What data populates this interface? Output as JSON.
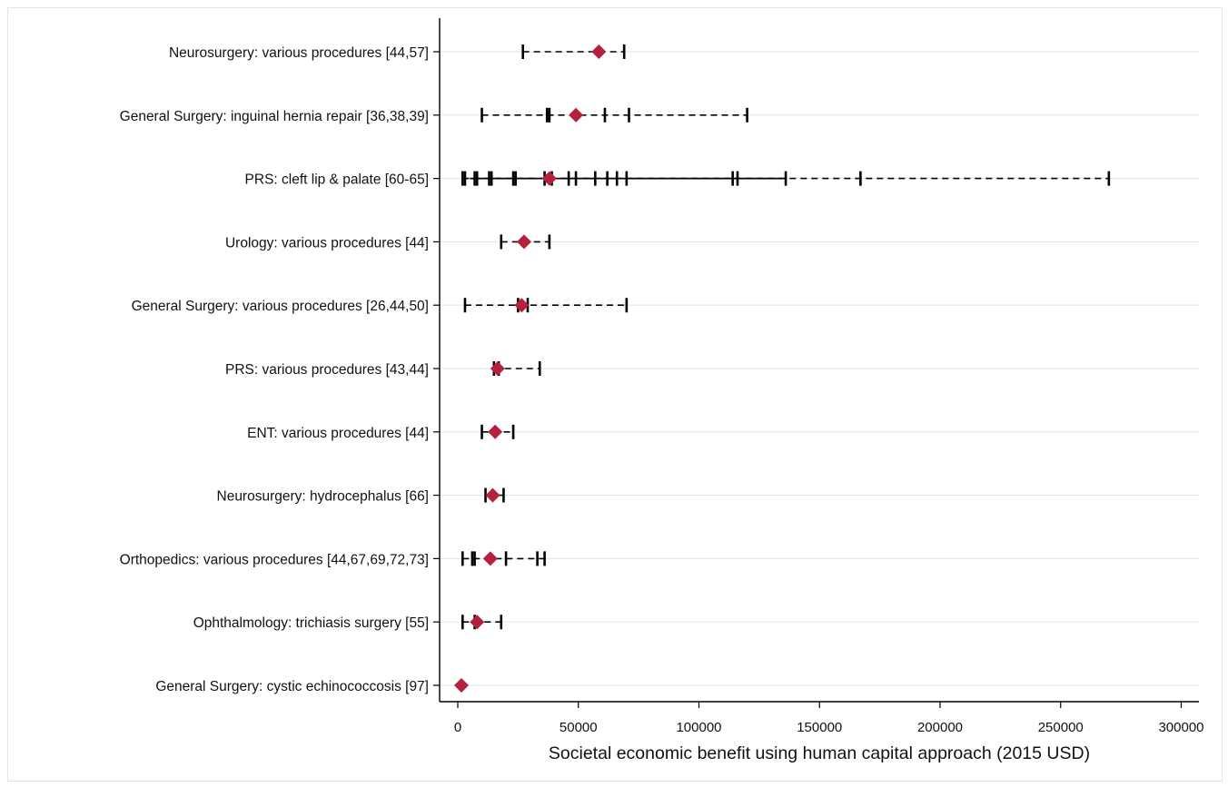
{
  "chart_data": {
    "type": "scatter",
    "title": "",
    "xlabel": "Societal economic benefit using human capital approach (2015 USD)",
    "ylabel": "",
    "xlim": [
      -5000,
      305000
    ],
    "xticks": [
      0,
      50000,
      100000,
      150000,
      200000,
      250000,
      300000
    ],
    "xtick_labels": [
      "0",
      "50000",
      "100000",
      "150000",
      "200000",
      "250000",
      "300000"
    ],
    "grid": "horizontal",
    "legend": "none",
    "colors": {
      "point": "#b5203d",
      "tick": "#000000",
      "grid": "#dbecee"
    },
    "categories": [
      "Neurosurgery: various procedures [44,57]",
      "General Surgery: inguinal hernia repair [36,38,39]",
      "PRS: cleft lip & palate [60-65]",
      "Urology: various procedures [44]",
      "General Surgery: various procedures [26,44,50]",
      "PRS: various procedures [43,44]",
      "ENT: various procedures [44]",
      "Neurosurgery: hydrocephalus [66]",
      "Orthopedics: various procedures [44,67,69,72,73]",
      "Ophthalmology: trichiasis surgery [55]",
      "General Surgery: cystic echinococcosis [97]"
    ],
    "rows": [
      {
        "estimates": [
          27000,
          69000
        ],
        "mean": 58500
      },
      {
        "estimates": [
          10000,
          37000,
          38000,
          61000,
          71000,
          120000
        ],
        "mean": 49000
      },
      {
        "estimates": [
          2000,
          3000,
          7000,
          8000,
          13000,
          14000,
          23000,
          24000,
          36000,
          39000,
          46000,
          49000,
          57000,
          62000,
          66000,
          70000,
          114000,
          116000,
          136000,
          167000,
          270000
        ],
        "mean": 38000,
        "solid_range": [
          5000,
          136000
        ]
      },
      {
        "estimates": [
          18000,
          38000
        ],
        "mean": 27500
      },
      {
        "estimates": [
          3000,
          25000,
          29000,
          70000
        ],
        "mean": 26500
      },
      {
        "estimates": [
          15000,
          17000,
          34000
        ],
        "mean": 16500
      },
      {
        "estimates": [
          10000,
          23000
        ],
        "mean": 15500
      },
      {
        "estimates": [
          11500,
          19000
        ],
        "mean": 14500
      },
      {
        "estimates": [
          2000,
          6000,
          7000,
          20000,
          33000,
          36000
        ],
        "mean": 13500
      },
      {
        "estimates": [
          2000,
          7000,
          18000
        ],
        "mean": 8000
      },
      {
        "estimates": [],
        "mean": 1500
      }
    ]
  }
}
